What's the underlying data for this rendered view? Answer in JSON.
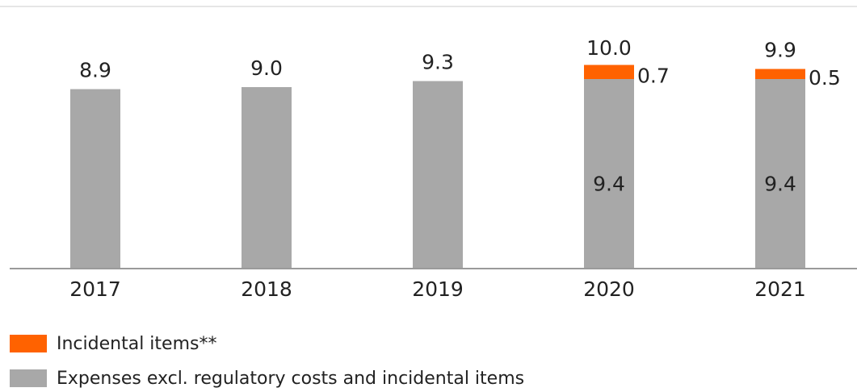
{
  "chart_data": {
    "type": "stacked_bar",
    "categories": [
      "2017",
      "2018",
      "2019",
      "2020",
      "2021"
    ],
    "series": [
      {
        "name": "Expenses excl. regulatory costs and incidental items",
        "color": "#a8a8a8",
        "values": [
          8.9,
          9.0,
          9.3,
          9.4,
          9.4
        ],
        "value_labels": [
          "8.9",
          "9.0",
          "9.3",
          "9.4",
          "9.4"
        ]
      },
      {
        "name": "Incidental items**",
        "color": "#ff6200",
        "values": [
          null,
          null,
          null,
          0.7,
          0.5
        ],
        "value_labels": [
          null,
          null,
          null,
          "0.7",
          "0.5"
        ]
      }
    ],
    "totals": [
      null,
      null,
      null,
      10.0,
      9.9
    ],
    "total_labels": [
      null,
      null,
      null,
      "10.0",
      "9.9"
    ],
    "ylim": [
      0,
      13
    ]
  }
}
